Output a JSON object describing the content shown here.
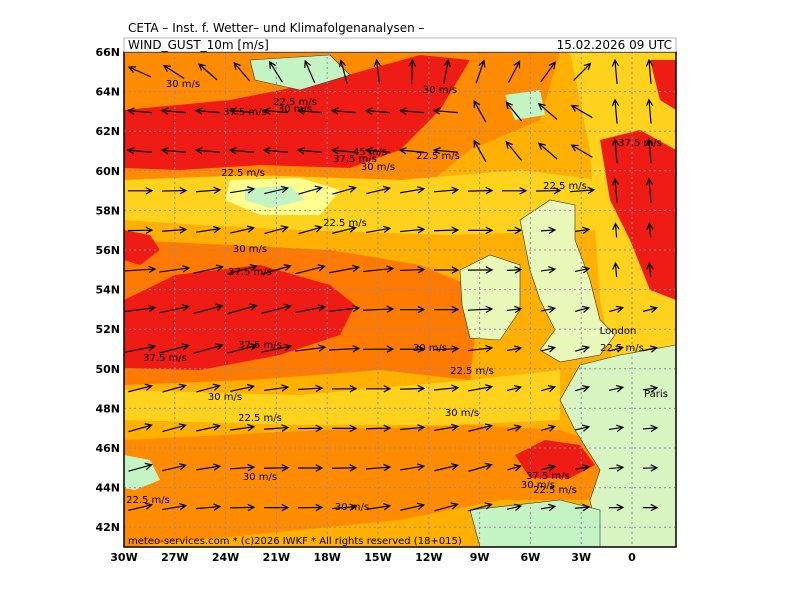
{
  "header": {
    "agency": "CETA – Inst. f. Wetter– und Klimafolgenanalysen –",
    "parameter": "WIND_GUST_10m [m/s]",
    "datetime": "15.02.2026 09 UTC"
  },
  "axes": {
    "longitudes": [
      "30W",
      "27W",
      "24W",
      "21W",
      "18W",
      "15W",
      "12W",
      "9W",
      "6W",
      "3W",
      "0"
    ],
    "latitudes": [
      "66N",
      "64N",
      "62N",
      "60N",
      "58N",
      "56N",
      "54N",
      "52N",
      "50N",
      "48N",
      "46N",
      "44N",
      "42N"
    ]
  },
  "contour_labels": [
    "30 m/s",
    "22.5 m/s",
    "37.5 m/s",
    "30 m/s",
    "30 m/s",
    "45 m/s",
    "37.5 m/s",
    "22.5 m/s",
    "30 m/s",
    "22.5 m/s",
    "37.5 m/s",
    "22.5 m/s",
    "22.5 m/s",
    "30 m/s",
    "37.5 m/s",
    "37.5 m/s",
    "30 m/s",
    "37.5 m/s",
    "22.5 m/s",
    "22.5 m/s",
    "30 m/s",
    "22.5 m/s",
    "30 m/s",
    "30 m/s",
    "37.5 m/s",
    "30 m/s",
    "22.5 m/s",
    "22.5 m/s",
    "30 m/s"
  ],
  "places": [
    "London",
    "Paris"
  ],
  "footer": "meteo-services.com * (c)2026 IWKF * All rights reserved (18+015)"
}
